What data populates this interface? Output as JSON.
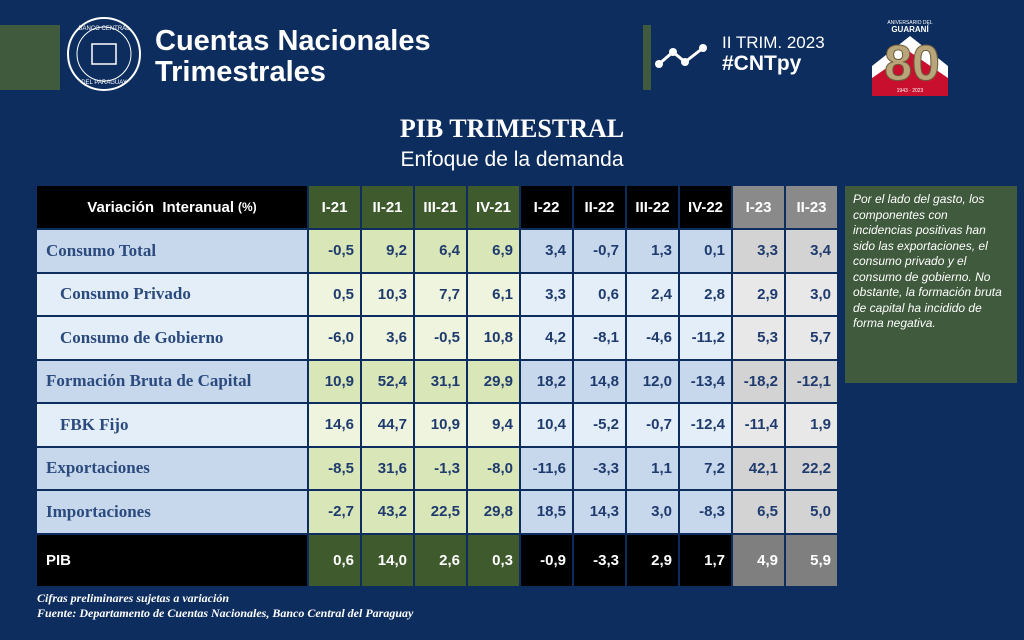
{
  "header": {
    "title_line1": "Cuentas Nacionales",
    "title_line2": "Trimestrales",
    "period": "II TRIM. 2023",
    "hashtag": "#CNTpy",
    "seal_top": "BANCO CENTRAL",
    "seal_bottom": "DEL PARAGUAY",
    "anniversary_label": "ANIVERSARIO DEL",
    "anniversary_name": "GUARANÍ",
    "anniversary_number": "80",
    "anniversary_years": "1943 · 2023"
  },
  "heading": {
    "title": "PIB TRIMESTRAL",
    "subtitle": "Enfoque de la demanda"
  },
  "table": {
    "header_label": "Variación  Interanual",
    "header_unit": "(%)",
    "columns": [
      "I-21",
      "II-21",
      "III-21",
      "IV-21",
      "I-22",
      "II-22",
      "III-22",
      "IV-22",
      "I-23",
      "II-23"
    ],
    "rows": [
      {
        "label": "Consumo Total",
        "values": [
          "-0,5",
          "9,2",
          "6,4",
          "6,9",
          "3,4",
          "-0,7",
          "1,3",
          "0,1",
          "3,3",
          "3,4"
        ]
      },
      {
        "label": "Consumo Privado",
        "values": [
          "0,5",
          "10,3",
          "7,7",
          "6,1",
          "3,3",
          "0,6",
          "2,4",
          "2,8",
          "2,9",
          "3,0"
        ]
      },
      {
        "label": "Consumo de Gobierno",
        "values": [
          "-6,0",
          "3,6",
          "-0,5",
          "10,8",
          "4,2",
          "-8,1",
          "-4,6",
          "-11,2",
          "5,3",
          "5,7"
        ]
      },
      {
        "label": "Formación Bruta de Capital",
        "values": [
          "10,9",
          "52,4",
          "31,1",
          "29,9",
          "18,2",
          "14,8",
          "12,0",
          "-13,4",
          "-18,2",
          "-12,1"
        ]
      },
      {
        "label": "FBK Fijo",
        "values": [
          "14,6",
          "44,7",
          "10,9",
          "9,4",
          "10,4",
          "-5,2",
          "-0,7",
          "-12,4",
          "-11,4",
          "1,9"
        ]
      },
      {
        "label": "Exportaciones",
        "values": [
          "-8,5",
          "31,6",
          "-1,3",
          "-8,0",
          "-11,6",
          "-3,3",
          "1,1",
          "7,2",
          "42,1",
          "22,2"
        ]
      },
      {
        "label": "Importaciones",
        "values": [
          "-2,7",
          "43,2",
          "22,5",
          "29,8",
          "18,5",
          "14,3",
          "3,0",
          "-8,3",
          "6,5",
          "5,0"
        ]
      }
    ],
    "total": {
      "label": "PIB",
      "values": [
        "0,6",
        "14,0",
        "2,6",
        "0,3",
        "-0,9",
        "-3,3",
        "2,9",
        "1,7",
        "4,9",
        "5,9"
      ]
    }
  },
  "note": "Por el lado del gasto, los componentes con incidencias positivas han sido las exportaciones, el consumo privado y el consumo de gobierno. No obstante, la formación bruta de capital ha incidido de forma negativa.",
  "footer": {
    "line1": "Cifras preliminares sujetas a variación",
    "line2": "Fuente: Departamento de Cuentas Nacionales, Banco Central del Paraguay"
  }
}
